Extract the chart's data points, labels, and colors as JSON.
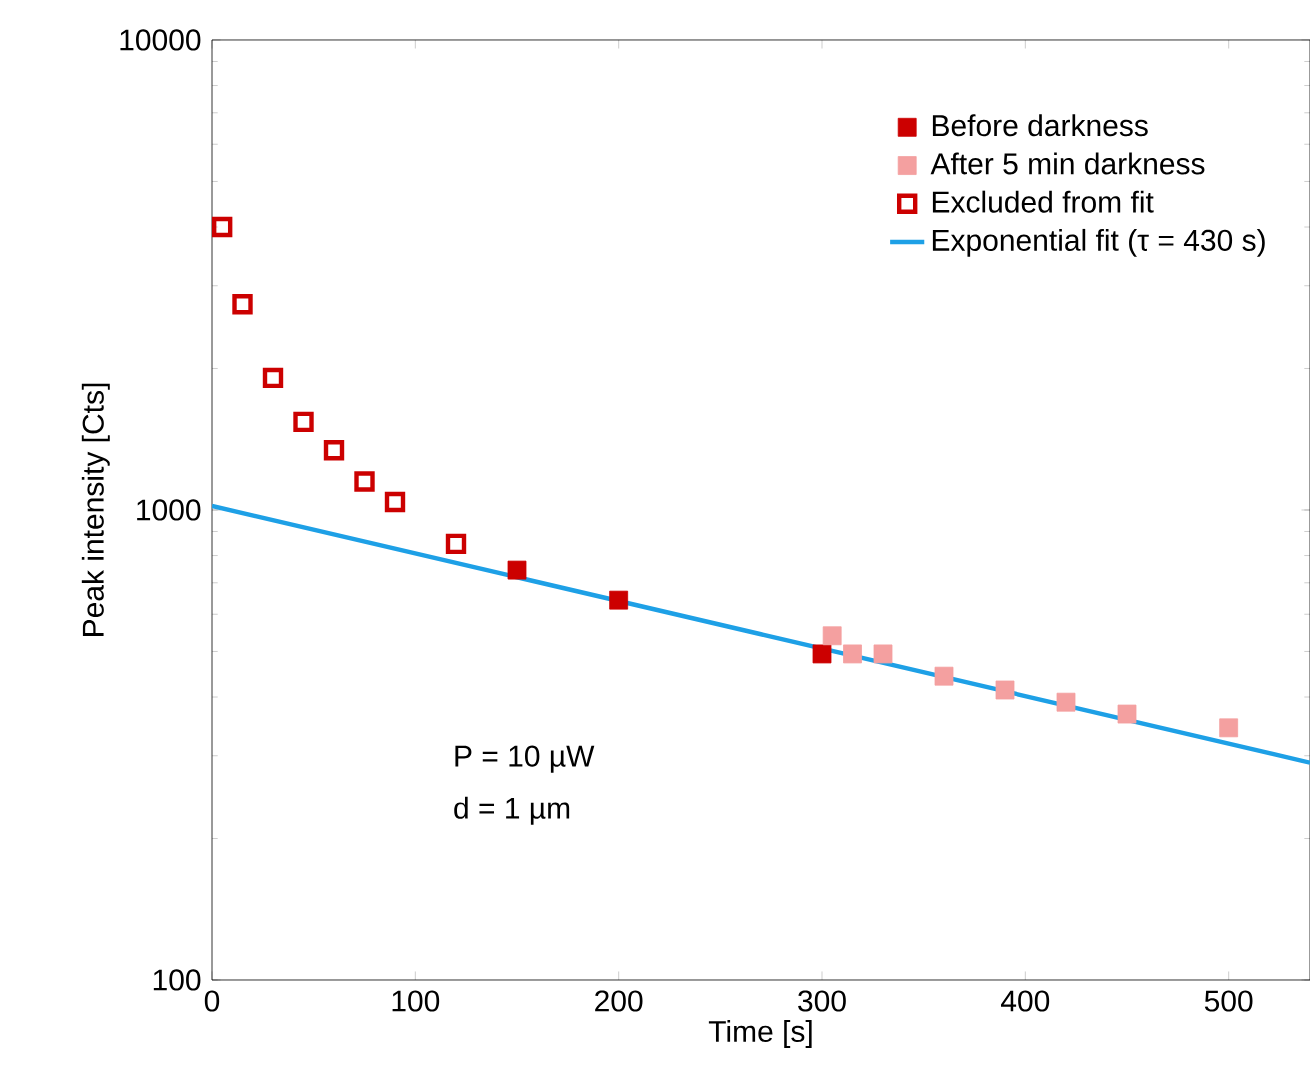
{
  "chart_data": {
    "type": "scatter",
    "xlabel": "Time [s]",
    "ylabel": "Peak intensity [Cts]",
    "log": "y",
    "xlim": [
      0,
      540
    ],
    "ylim": [
      100,
      10000
    ],
    "xticks": [
      0,
      100,
      200,
      300,
      400,
      500
    ],
    "yticks": [
      100,
      1000,
      10000
    ],
    "legend": "top right",
    "marker": "square",
    "series": [
      {
        "name": "Before darkness",
        "color": "#cc0000",
        "marker": "square",
        "x": [
          150,
          200,
          300
        ],
        "values": [
          745,
          643,
          494
        ]
      },
      {
        "name": "After 5 min darkness",
        "color": "#f4a0a0",
        "marker": "square",
        "x": [
          305,
          315,
          330,
          360,
          390,
          420,
          450,
          500
        ],
        "values": [
          540,
          494,
          494,
          443,
          414,
          390,
          368,
          344
        ]
      },
      {
        "name": "Excluded from fit",
        "color": "#cc0000",
        "x": [
          5,
          15,
          30,
          45,
          60,
          75,
          90,
          120
        ],
        "values": [
          4000,
          2740,
          1910,
          1540,
          1340,
          1150,
          1040,
          847
        ]
      },
      {
        "name": "Exponential fit (τ = 430 s)",
        "type": "line",
        "color": "#1ea0e6",
        "marker": "none",
        "x": [
          0,
          270,
          540
        ],
        "values": [
          1020,
          544,
          290
        ]
      }
    ],
    "annotations": [
      "P = 10 µW",
      "d = 1 µm"
    ]
  }
}
